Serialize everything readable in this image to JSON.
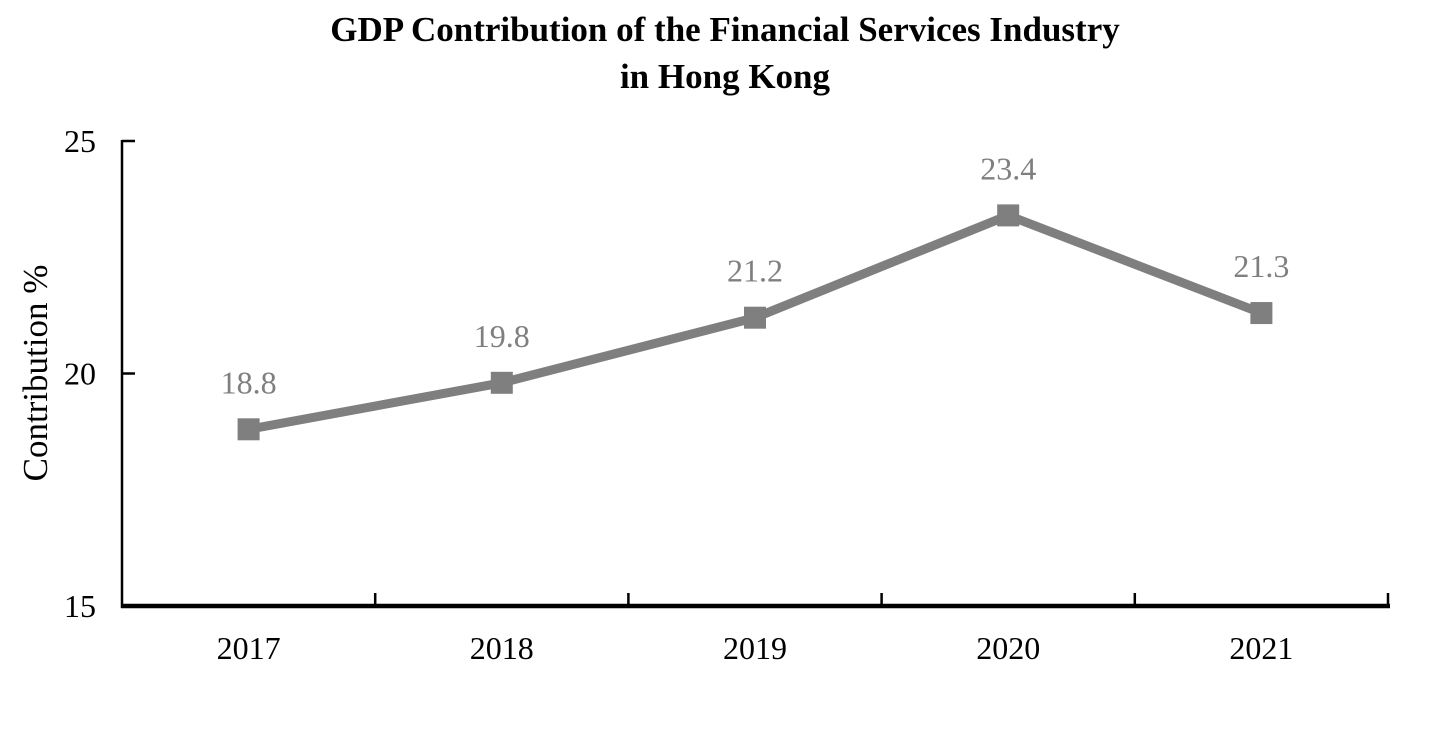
{
  "chart_data": {
    "type": "line",
    "title": "GDP Contribution of the Financial Services Industry in Hong Kong",
    "title_lines": [
      "GDP Contribution of the Financial Services Industry",
      "in Hong Kong"
    ],
    "categories": [
      "2017",
      "2018",
      "2019",
      "2020",
      "2021"
    ],
    "values": [
      18.8,
      19.8,
      21.2,
      23.4,
      21.3
    ],
    "data_labels": [
      "18.8",
      "19.8",
      "21.2",
      "23.4",
      "21.3"
    ],
    "xlabel": "",
    "ylabel": "Contribution %",
    "ylim": [
      15,
      25
    ],
    "yticks": [
      25,
      20,
      15
    ],
    "grid": false,
    "legend": "none",
    "marker": "square",
    "colors": {
      "series": "#7f7f7f",
      "marker": "#7f7f7f",
      "data_label": "#7f7f7f",
      "axis": "#000000",
      "tick_label": "#000000",
      "title": "#000000",
      "background": "#ffffff"
    }
  }
}
